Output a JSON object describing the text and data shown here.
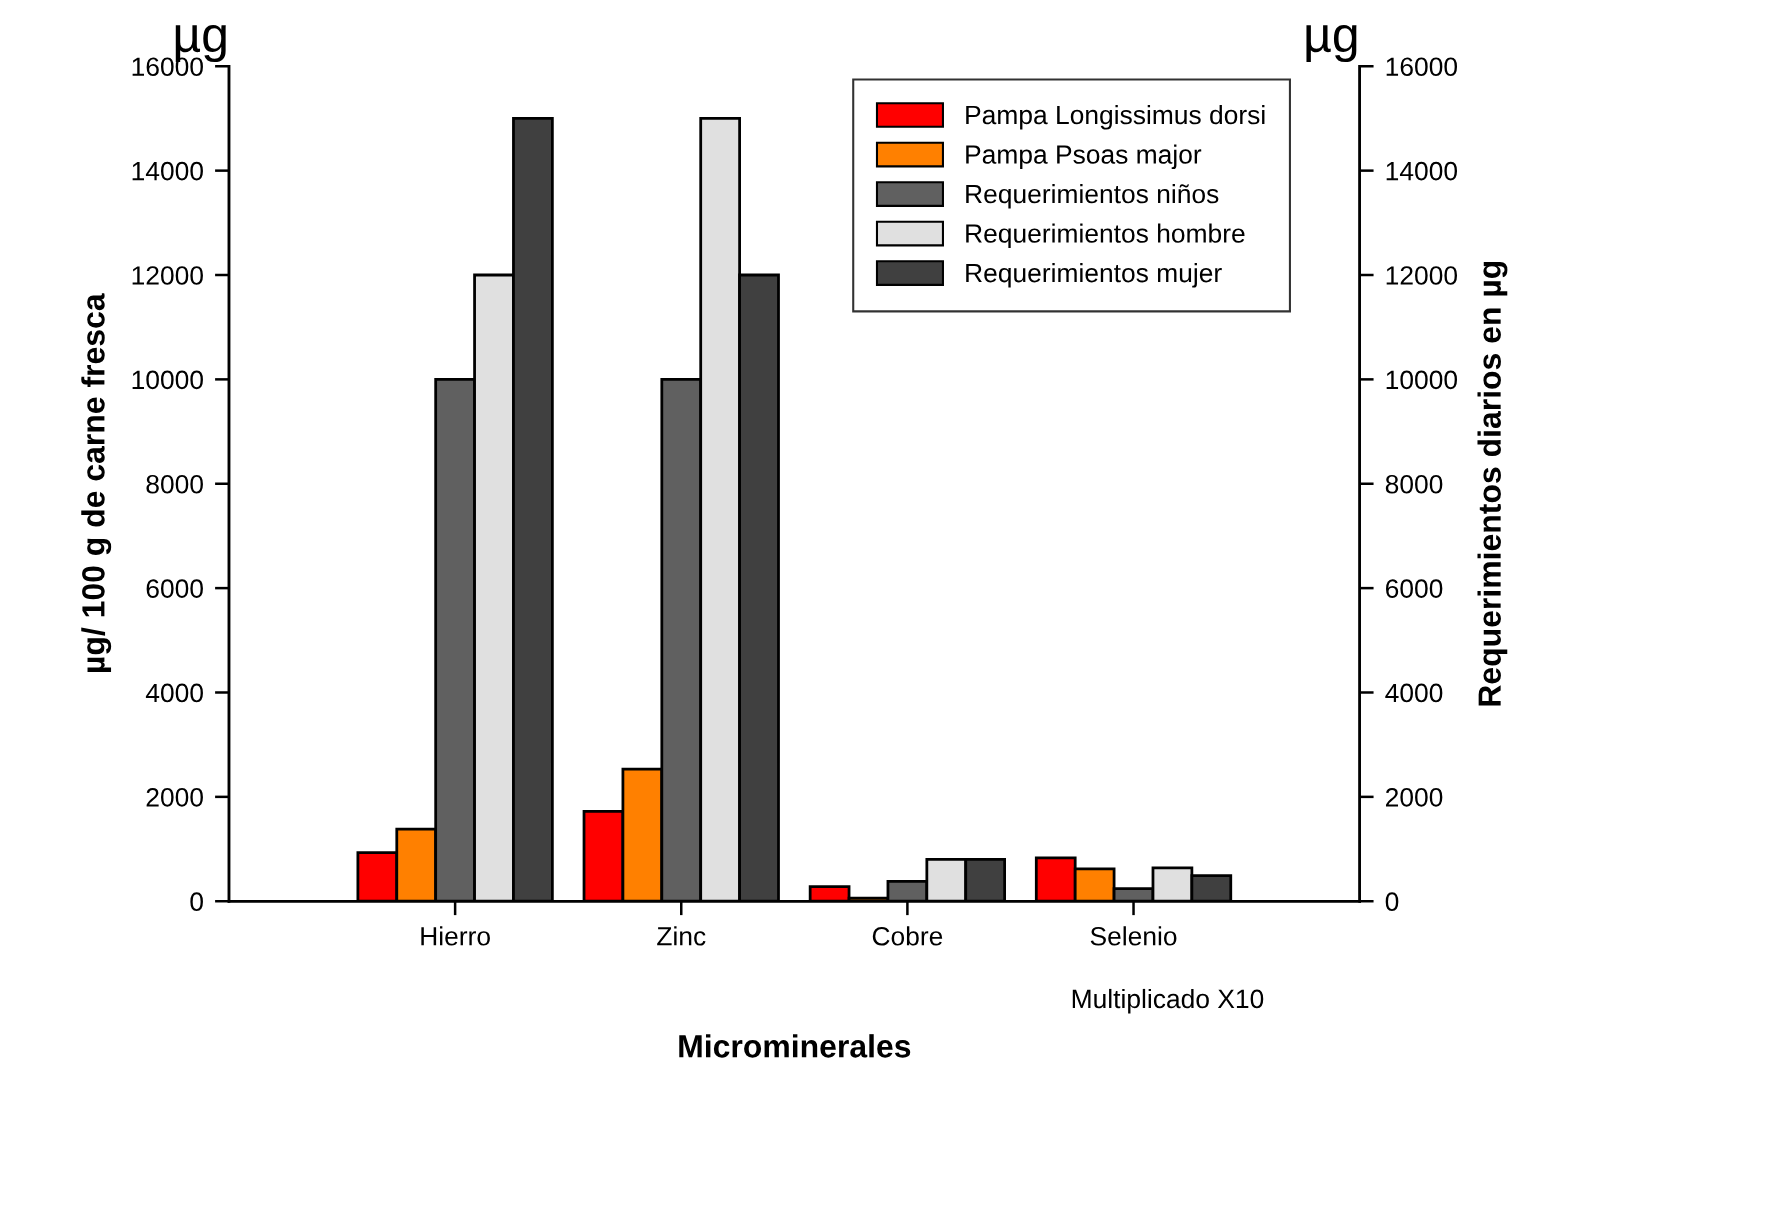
{
  "chart_data": {
    "type": "bar",
    "categories": [
      "Hierro",
      "Zinc",
      "Cobre",
      "Selenio"
    ],
    "series": [
      {
        "name": "Pampa Longissimus dorsi",
        "color": "#ff0000",
        "values": [
          930,
          1720,
          280,
          830
        ]
      },
      {
        "name": "Pampa Psoas major",
        "color": "#ff8000",
        "values": [
          1380,
          2530,
          60,
          620
        ]
      },
      {
        "name": "Requerimientos niños",
        "color": "#606060",
        "values": [
          10000,
          10000,
          380,
          240
        ]
      },
      {
        "name": "Requerimientos hombre",
        "color": "#e0e0e0",
        "values": [
          12000,
          15000,
          800,
          640
        ]
      },
      {
        "name": "Requerimientos mujer",
        "color": "#404040",
        "values": [
          15000,
          12000,
          800,
          490
        ]
      }
    ],
    "xlabel": "Microminerales",
    "ylabel": "µg/ 100 g de carne fresca",
    "y2label": "Requerimientos diarios en µg",
    "ylim": [
      0,
      16000
    ],
    "yticks": [
      0,
      2000,
      4000,
      6000,
      8000,
      10000,
      12000,
      14000,
      16000
    ],
    "y2lim": [
      0,
      16000
    ],
    "y2ticks": [
      0,
      2000,
      4000,
      6000,
      8000,
      10000,
      12000,
      14000,
      16000
    ],
    "annotations": [
      "µg",
      "µg",
      "Multiplicado X10"
    ],
    "legend": "top right",
    "grid": false
  }
}
